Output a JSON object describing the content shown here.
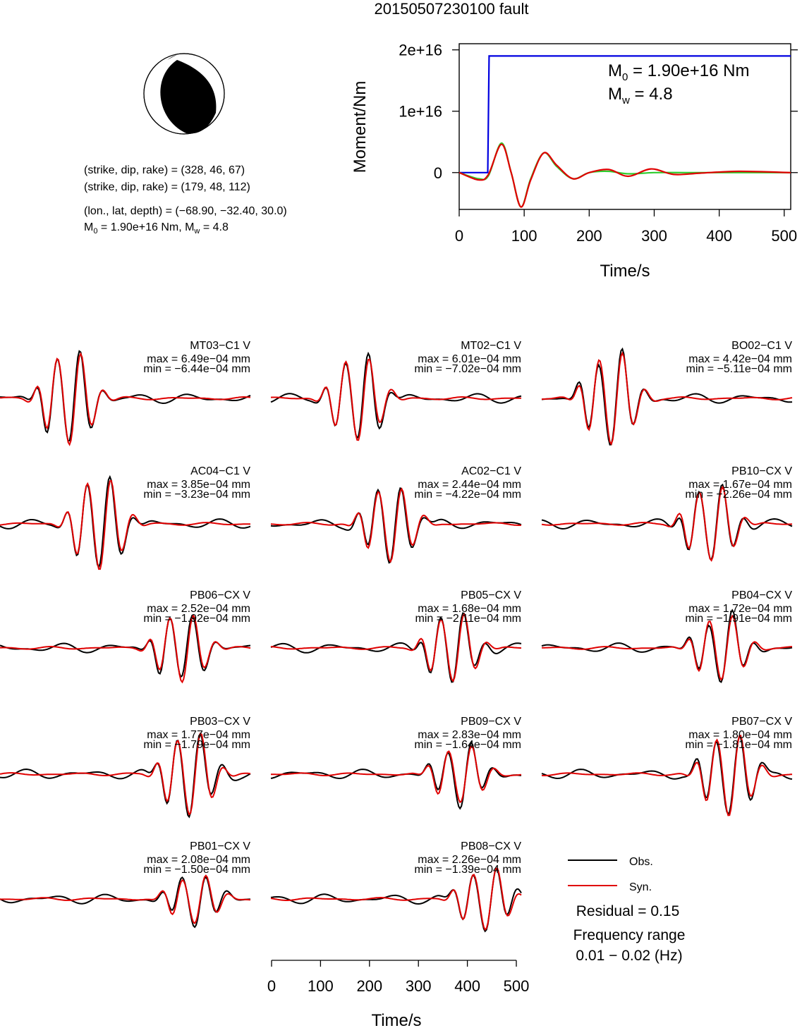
{
  "title": "20150507230100 fault",
  "params": {
    "line1": "(strike, dip, rake) = (328, 46, 67)",
    "line2": "(strike, dip, rake) = (179, 48, 112)",
    "line3": "(lon., lat, depth) = (−68.90, −32.40, 30.0)",
    "m0_prefix": "M",
    "m0_sub": "0",
    "m0_rest": " = 1.90e+16 Nm, M",
    "mw_sub": "w",
    "mw_rest": " = 4.8"
  },
  "moment_plot": {
    "ylabel": "Moment/Nm",
    "xlabel": "Time/s",
    "m0_label": "M",
    "m0_sub": "0",
    "m0_value": " = 1.90e+16 Nm",
    "mw_label": "M",
    "mw_sub": "w",
    "mw_value": " = 4.8"
  },
  "stations": [
    {
      "name": "MT03−C1 V",
      "max": "max = 6.49e−04 mm",
      "min": "min = −6.44e−04 mm"
    },
    {
      "name": "MT02−C1 V",
      "max": "max = 6.01e−04 mm",
      "min": "min = −7.02e−04 mm"
    },
    {
      "name": "BO02−C1 V",
      "max": "max = 4.42e−04 mm",
      "min": "min = −5.11e−04 mm"
    },
    {
      "name": "AC04−C1 V",
      "max": "max = 3.85e−04 mm",
      "min": "min = −3.23e−04 mm"
    },
    {
      "name": "AC02−C1 V",
      "max": "max = 2.44e−04 mm",
      "min": "min = −4.22e−04 mm"
    },
    {
      "name": "PB10−CX V",
      "max": "max = 1.67e−04 mm",
      "min": "min = −2.26e−04 mm"
    },
    {
      "name": "PB06−CX V",
      "max": "max = 2.52e−04 mm",
      "min": "min = −1.92e−04 mm"
    },
    {
      "name": "PB05−CX V",
      "max": "max = 1.68e−04 mm",
      "min": "min = −2.11e−04 mm"
    },
    {
      "name": "PB04−CX V",
      "max": "max = 1.72e−04 mm",
      "min": "min = −1.91e−04 mm"
    },
    {
      "name": "PB03−CX V",
      "max": "max = 1.77e−04 mm",
      "min": "min = −1.79e−04 mm"
    },
    {
      "name": "PB09−CX V",
      "max": "max = 2.83e−04 mm",
      "min": "min = −1.64e−04 mm"
    },
    {
      "name": "PB07−CX V",
      "max": "max = 1.80e−04 mm",
      "min": "min = −1.81e−04 mm"
    },
    {
      "name": "PB01−CX V",
      "max": "max = 2.08e−04 mm",
      "min": "min = −1.50e−04 mm"
    },
    {
      "name": "PB08−CX V",
      "max": "max = 2.26e−04 mm",
      "min": "min = −1.39e−04 mm"
    }
  ],
  "legend": {
    "obs": "Obs.",
    "syn": "Syn."
  },
  "residual": "Residual = 0.15",
  "freq_title": "Frequency range",
  "freq_value": "0.01 − 0.02 (Hz)",
  "bottom_axis_label": "Time/s",
  "colors": {
    "obs": "#000000",
    "syn": "#e00000",
    "stf": "#0000e0",
    "green": "#2ecc2e",
    "axes": "#000000"
  },
  "chart_data": [
    {
      "type": "line",
      "title": "",
      "xlabel": "Time/s",
      "ylabel": "Moment/Nm",
      "xlim": [
        0,
        510
      ],
      "ylim": [
        -6000000000000000.0,
        2.1e+16
      ],
      "xticks": [
        0,
        100,
        200,
        300,
        400,
        500
      ],
      "yticks": [
        0,
        1e+16,
        2e+16
      ],
      "ytick_labels": [
        "0",
        "1e+16",
        "2e+16"
      ],
      "series": [
        {
          "color": "#0000e0",
          "x": [
            0,
            44,
            46,
            510
          ],
          "y": [
            0,
            0,
            1.9e+16,
            1.9e+16
          ]
        },
        {
          "color": "#2ecc2e",
          "x": [
            0,
            30,
            45,
            65,
            80,
            95,
            110,
            130,
            150,
            175,
            200,
            230,
            260,
            300,
            350,
            400,
            450,
            510
          ],
          "y": [
            0,
            -1000000000000000.0,
            -500000000000000.0,
            4800000000000000.0,
            0,
            -5600000000000000.0,
            -1000000000000000.0,
            3200000000000000.0,
            1000000000000000.0,
            -1000000000000000.0,
            0,
            200000000000000.0,
            -200000000000000.0,
            0,
            0,
            0,
            0,
            0
          ]
        },
        {
          "color": "#e00000",
          "x": [
            0,
            30,
            45,
            65,
            80,
            95,
            110,
            130,
            150,
            175,
            200,
            230,
            260,
            295,
            330,
            370,
            430,
            510
          ],
          "y": [
            0,
            -1200000000000000.0,
            -300000000000000.0,
            4600000000000000.0,
            0,
            -5600000000000000.0,
            -1200000000000000.0,
            3200000000000000.0,
            1200000000000000.0,
            -1000000000000000.0,
            0,
            500000000000000.0,
            -600000000000000.0,
            600000000000000.0,
            -300000000000000.0,
            -100000000000000.0,
            200000000000000.0,
            0
          ]
        }
      ]
    },
    {
      "type": "line",
      "title": "",
      "xlabel": "Time/s",
      "ylabel": "",
      "xlim": [
        0,
        510
      ],
      "xticks": [
        0,
        100,
        200,
        300,
        400,
        500
      ],
      "series": [
        {
          "name": "Obs."
        },
        {
          "name": "Syn."
        }
      ]
    }
  ]
}
